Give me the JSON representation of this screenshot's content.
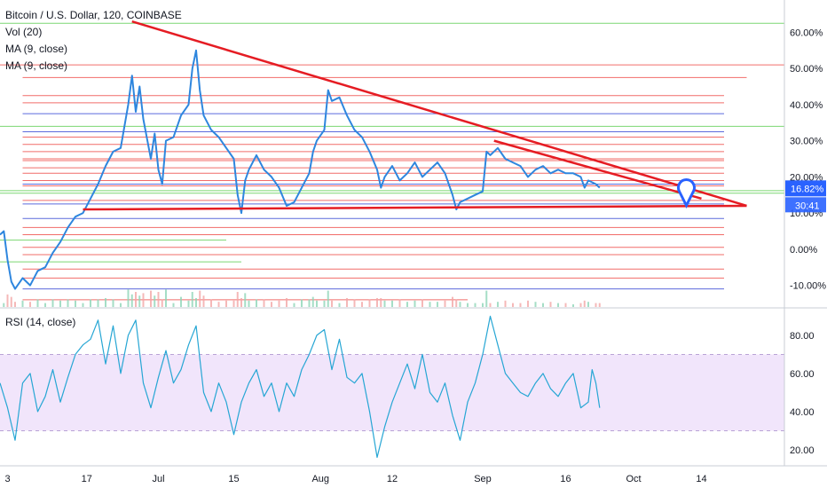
{
  "legend": {
    "title": "Bitcoin / U.S. Dollar, 120, COINBASE",
    "volume": "Vol (20)",
    "ma1": "MA (9, close)",
    "ma2": "MA (9, close)"
  },
  "rsi_legend": "RSI (14, close)",
  "price_badge": "16.82%",
  "countdown_badge": "30:41",
  "colors": {
    "price_line": "#2e86de",
    "trend_line": "#e51c23",
    "level_red": "#ef5350",
    "level_green": "#66d15a",
    "level_blue": "#3f51d6",
    "rsi_line": "#26a6d4",
    "rsi_band": "#f1e5fb",
    "badge_blue": "#2962ff"
  },
  "marker_icon": "map-pin-icon",
  "chart_data": [
    {
      "type": "line",
      "title": "Bitcoin / U.S. Dollar, 120, COINBASE",
      "y_unit": "% change",
      "y_ticks": [
        "60.00%",
        "50.00%",
        "40.00%",
        "30.00%",
        "20.00%",
        "10.00%",
        "0.00%",
        "-10.00%"
      ],
      "x_ticks": [
        "3",
        "17",
        "Jul",
        "15",
        "Aug",
        "12",
        "Sep",
        "16",
        "Oct",
        "14"
      ],
      "ylim": [
        -16,
        66
      ],
      "last_value": 16.82,
      "series": [
        {
          "name": "Bitcoin / U.S. Dollar",
          "points": [
            [
              0,
              4
            ],
            [
              0.5,
              5
            ],
            [
              1,
              -3
            ],
            [
              1.5,
              -9
            ],
            [
              2,
              -11
            ],
            [
              3,
              -8
            ],
            [
              4,
              -10
            ],
            [
              5,
              -6
            ],
            [
              6,
              -5
            ],
            [
              7,
              -1
            ],
            [
              8,
              2
            ],
            [
              9,
              6
            ],
            [
              10,
              9
            ],
            [
              11,
              10
            ],
            [
              12,
              14
            ],
            [
              13,
              18
            ],
            [
              14,
              23
            ],
            [
              15,
              27
            ],
            [
              16,
              28
            ],
            [
              17,
              40
            ],
            [
              17.5,
              48
            ],
            [
              18,
              38
            ],
            [
              18.5,
              45
            ],
            [
              19,
              36
            ],
            [
              20,
              25
            ],
            [
              20.5,
              32
            ],
            [
              21,
              22
            ],
            [
              21.5,
              18
            ],
            [
              22,
              30
            ],
            [
              23,
              31
            ],
            [
              24,
              37
            ],
            [
              25,
              40
            ],
            [
              25.5,
              50
            ],
            [
              26,
              55
            ],
            [
              26.5,
              44
            ],
            [
              27,
              37
            ],
            [
              28,
              33
            ],
            [
              29,
              31
            ],
            [
              30,
              28
            ],
            [
              31,
              25
            ],
            [
              31.5,
              15
            ],
            [
              32,
              10
            ],
            [
              32.5,
              19
            ],
            [
              33,
              22
            ],
            [
              34,
              26
            ],
            [
              35,
              22
            ],
            [
              36,
              20
            ],
            [
              37,
              17
            ],
            [
              38,
              12
            ],
            [
              39,
              13
            ],
            [
              40,
              17
            ],
            [
              41,
              21
            ],
            [
              41.5,
              27
            ],
            [
              42,
              30
            ],
            [
              43,
              33
            ],
            [
              43.5,
              44
            ],
            [
              44,
              41
            ],
            [
              45,
              42
            ],
            [
              46,
              37
            ],
            [
              47,
              33
            ],
            [
              48,
              31
            ],
            [
              49,
              27
            ],
            [
              50,
              22
            ],
            [
              50.5,
              17
            ],
            [
              51,
              20
            ],
            [
              52,
              23
            ],
            [
              53,
              19
            ],
            [
              54,
              21
            ],
            [
              55,
              24
            ],
            [
              56,
              20
            ],
            [
              57,
              22
            ],
            [
              58,
              24
            ],
            [
              59,
              21
            ],
            [
              60,
              15
            ],
            [
              60.5,
              11
            ],
            [
              61,
              13
            ],
            [
              62,
              14
            ],
            [
              63,
              15
            ],
            [
              64,
              16
            ],
            [
              64.5,
              27
            ],
            [
              65,
              26
            ],
            [
              66,
              28
            ],
            [
              67,
              25
            ],
            [
              68,
              24
            ],
            [
              69,
              23
            ],
            [
              70,
              20
            ],
            [
              71,
              22
            ],
            [
              72,
              23
            ],
            [
              73,
              21
            ],
            [
              74,
              22
            ],
            [
              75,
              21
            ],
            [
              76,
              21
            ],
            [
              77,
              20
            ],
            [
              77.5,
              17
            ],
            [
              78,
              19
            ],
            [
              79,
              18
            ],
            [
              79.5,
              17
            ]
          ]
        }
      ],
      "trendlines": [
        {
          "name": "descending resistance",
          "points": [
            [
              17.5,
              63
            ],
            [
              99,
              12
            ]
          ]
        },
        {
          "name": "horizontal support",
          "points": [
            [
              11,
              11
            ],
            [
              99,
              12
            ]
          ]
        },
        {
          "name": "short resistance",
          "points": [
            [
              65.5,
              30
            ],
            [
              93,
              14
            ]
          ]
        }
      ],
      "horizontal_levels": [
        {
          "value": 62.5,
          "color": "green",
          "x_end": 104
        },
        {
          "value": 51,
          "color": "red",
          "x_end": 104
        },
        {
          "value": 47.5,
          "color": "red",
          "x_end": 99
        },
        {
          "value": 42.5,
          "color": "red",
          "x_end": 96
        },
        {
          "value": 40.5,
          "color": "red",
          "x_end": 96
        },
        {
          "value": 37.5,
          "color": "blue",
          "x_end": 96
        },
        {
          "value": 34,
          "color": "green",
          "x_end": 104
        },
        {
          "value": 32.5,
          "color": "blue",
          "x_end": 96
        },
        {
          "value": 31,
          "color": "red",
          "x_end": 96
        },
        {
          "value": 29,
          "color": "red",
          "x_end": 96
        },
        {
          "value": 27,
          "color": "red",
          "x_end": 96
        },
        {
          "value": 25,
          "color": "red",
          "x_end": 96
        },
        {
          "value": 24.5,
          "color": "red",
          "x_end": 96
        },
        {
          "value": 22.5,
          "color": "red",
          "x_end": 96
        },
        {
          "value": 21,
          "color": "red",
          "x_end": 96
        },
        {
          "value": 19,
          "color": "red",
          "x_end": 96
        },
        {
          "value": 18,
          "color": "blue",
          "x_end": 96
        },
        {
          "value": 17.5,
          "color": "red",
          "x_end": 96
        },
        {
          "value": 16.2,
          "color": "green",
          "x_end": 104
        },
        {
          "value": 15.5,
          "color": "green",
          "x_end": 104
        },
        {
          "value": 13.5,
          "color": "red",
          "x_end": 96
        },
        {
          "value": 12.5,
          "color": "blue",
          "x_end": 96
        },
        {
          "value": 8.5,
          "color": "blue",
          "x_end": 96
        },
        {
          "value": 6,
          "color": "red",
          "x_end": 96
        },
        {
          "value": 4,
          "color": "red",
          "x_end": 96
        },
        {
          "value": 2.5,
          "color": "green",
          "x_end": 30
        },
        {
          "value": 0.5,
          "color": "red",
          "x_end": 96
        },
        {
          "value": -1.5,
          "color": "red",
          "x_end": 96
        },
        {
          "value": -3.5,
          "color": "green",
          "x_end": 32
        },
        {
          "value": -5.5,
          "color": "red",
          "x_end": 96
        },
        {
          "value": -8,
          "color": "red",
          "x_end": 96
        },
        {
          "value": -11,
          "color": "blue",
          "x_end": 96
        },
        {
          "value": -14,
          "color": "red",
          "x_end": 62
        }
      ],
      "marker": {
        "x": 91,
        "value": 16.5
      }
    },
    {
      "type": "line",
      "title": "RSI (14, close)",
      "y_ticks": [
        "80.00",
        "60.00",
        "40.00",
        "20.00"
      ],
      "ylim": [
        13,
        93
      ],
      "band": [
        30,
        70
      ],
      "series": [
        {
          "name": "RSI (14, close)",
          "points": [
            [
              0,
              55
            ],
            [
              1,
              42
            ],
            [
              2,
              25
            ],
            [
              3,
              55
            ],
            [
              4,
              60
            ],
            [
              5,
              40
            ],
            [
              6,
              48
            ],
            [
              7,
              62
            ],
            [
              8,
              45
            ],
            [
              9,
              58
            ],
            [
              10,
              70
            ],
            [
              11,
              75
            ],
            [
              12,
              78
            ],
            [
              13,
              88
            ],
            [
              14,
              65
            ],
            [
              15,
              85
            ],
            [
              16,
              60
            ],
            [
              17,
              80
            ],
            [
              18,
              88
            ],
            [
              19,
              55
            ],
            [
              20,
              42
            ],
            [
              21,
              58
            ],
            [
              22,
              72
            ],
            [
              23,
              55
            ],
            [
              24,
              62
            ],
            [
              25,
              75
            ],
            [
              26,
              85
            ],
            [
              27,
              50
            ],
            [
              28,
              40
            ],
            [
              29,
              55
            ],
            [
              30,
              45
            ],
            [
              31,
              28
            ],
            [
              32,
              45
            ],
            [
              33,
              55
            ],
            [
              34,
              62
            ],
            [
              35,
              48
            ],
            [
              36,
              55
            ],
            [
              37,
              40
            ],
            [
              38,
              55
            ],
            [
              39,
              48
            ],
            [
              40,
              62
            ],
            [
              41,
              70
            ],
            [
              42,
              80
            ],
            [
              43,
              83
            ],
            [
              44,
              62
            ],
            [
              45,
              78
            ],
            [
              46,
              58
            ],
            [
              47,
              55
            ],
            [
              48,
              60
            ],
            [
              49,
              40
            ],
            [
              50,
              16
            ],
            [
              51,
              32
            ],
            [
              52,
              45
            ],
            [
              53,
              55
            ],
            [
              54,
              65
            ],
            [
              55,
              52
            ],
            [
              56,
              70
            ],
            [
              57,
              50
            ],
            [
              58,
              45
            ],
            [
              59,
              55
            ],
            [
              60,
              38
            ],
            [
              61,
              25
            ],
            [
              62,
              45
            ],
            [
              63,
              55
            ],
            [
              64,
              70
            ],
            [
              65,
              90
            ],
            [
              66,
              75
            ],
            [
              67,
              60
            ],
            [
              68,
              55
            ],
            [
              69,
              50
            ],
            [
              70,
              48
            ],
            [
              71,
              55
            ],
            [
              72,
              60
            ],
            [
              73,
              52
            ],
            [
              74,
              48
            ],
            [
              75,
              55
            ],
            [
              76,
              60
            ],
            [
              77,
              42
            ],
            [
              78,
              45
            ],
            [
              78.5,
              62
            ],
            [
              79,
              55
            ],
            [
              79.5,
              42
            ]
          ]
        }
      ]
    }
  ]
}
